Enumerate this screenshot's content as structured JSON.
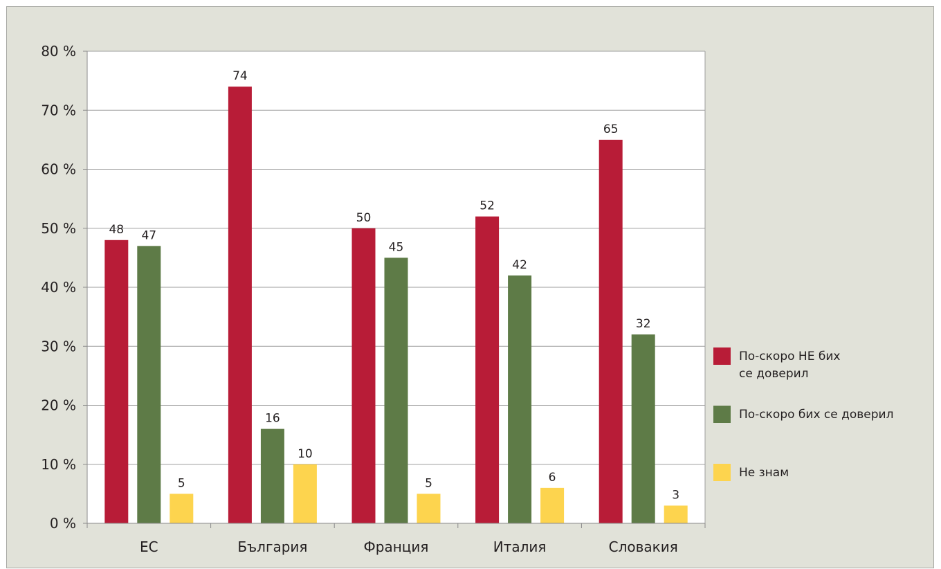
{
  "chart_data": {
    "type": "bar",
    "categories": [
      "ЕС",
      "България",
      "Франция",
      "Италия",
      "Словакия"
    ],
    "series": [
      {
        "name": "По-скоро НЕ бих се доверил",
        "name_lines": [
          "По-скоро НЕ бих",
          "се доверил"
        ],
        "color": "#b81c37",
        "values": [
          48,
          74,
          50,
          52,
          65
        ]
      },
      {
        "name": "По-скоро бих се доверил",
        "name_lines": [
          "По-скоро бих се доверил"
        ],
        "color": "#5e7b47",
        "values": [
          47,
          16,
          45,
          42,
          32
        ]
      },
      {
        "name": "Не знам",
        "name_lines": [
          "Не знам"
        ],
        "color": "#fdd44e",
        "values": [
          5,
          10,
          5,
          6,
          3
        ]
      }
    ],
    "y_ticks": [
      "0 %",
      "10 %",
      "20 %",
      "30 %",
      "40 %",
      "50 %",
      "60 %",
      "70 %",
      "80 %"
    ],
    "ylim": [
      0,
      80
    ],
    "grid": true,
    "legend_position": "right"
  }
}
